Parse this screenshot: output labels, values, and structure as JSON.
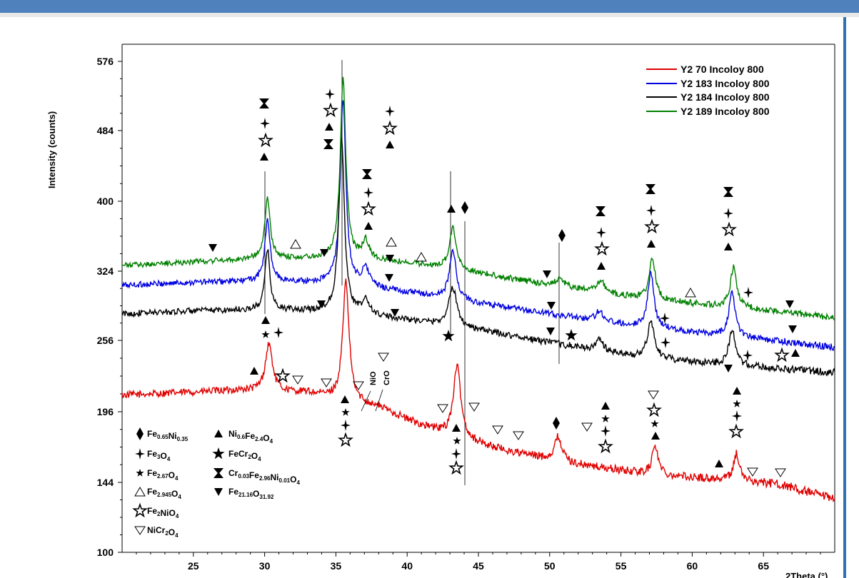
{
  "colors": {
    "header_bar": "#4f81bd",
    "side_bar": "#2e74b5"
  },
  "chart_data": {
    "type": "line",
    "title": "",
    "xlabel": "2Theta (°)",
    "ylabel": "Intensity (counts)",
    "xlim": [
      20,
      70
    ],
    "ylim": [
      100,
      600
    ],
    "x_ticks": [
      25,
      30,
      35,
      40,
      45,
      50,
      55,
      60,
      65
    ],
    "y_ticks": [
      100,
      144,
      196,
      256,
      324,
      400,
      484,
      576
    ],
    "legend_position": "top-right",
    "series": [
      {
        "name": "Y2 70  Incoloy 800",
        "color": "#e00000",
        "baseline": [
          [
            20,
            210
          ],
          [
            28,
            214
          ],
          [
            33,
            212
          ],
          [
            38,
            200
          ],
          [
            40,
            190
          ],
          [
            43,
            178
          ],
          [
            47,
            167
          ],
          [
            52,
            157
          ],
          [
            57,
            150
          ],
          [
            62,
            146
          ],
          [
            66,
            143
          ],
          [
            70,
            133
          ]
        ],
        "peaks": [
          [
            30.3,
            40,
            0.3
          ],
          [
            35.7,
            108,
            0.25
          ],
          [
            43.5,
            58,
            0.3
          ],
          [
            50.6,
            18,
            0.3
          ],
          [
            57.4,
            22,
            0.25
          ],
          [
            63.1,
            20,
            0.25
          ]
        ]
      },
      {
        "name": "Y2 183 Incoloy 800",
        "color": "#0000e0",
        "baseline": [
          [
            20,
            310
          ],
          [
            25,
            313
          ],
          [
            30,
            314
          ],
          [
            35,
            312
          ],
          [
            40,
            303
          ],
          [
            45,
            292
          ],
          [
            50,
            282
          ],
          [
            55,
            272
          ],
          [
            60,
            264
          ],
          [
            65,
            257
          ],
          [
            70,
            250
          ]
        ],
        "peaks": [
          [
            30.2,
            65,
            0.22
          ],
          [
            35.5,
            215,
            0.22
          ],
          [
            37.1,
            18,
            0.3
          ],
          [
            43.2,
            50,
            0.28
          ],
          [
            53.5,
            10,
            0.3
          ],
          [
            57.1,
            55,
            0.25
          ],
          [
            62.8,
            45,
            0.25
          ]
        ]
      },
      {
        "name": "Y2 184 Incoloy 800",
        "color": "#000000",
        "baseline": [
          [
            20,
            282
          ],
          [
            25,
            285
          ],
          [
            30,
            286
          ],
          [
            35,
            284
          ],
          [
            40,
            276
          ],
          [
            45,
            266
          ],
          [
            50,
            254
          ],
          [
            55,
            244
          ],
          [
            60,
            238
          ],
          [
            65,
            233
          ],
          [
            70,
            229
          ]
        ],
        "peaks": [
          [
            30.2,
            62,
            0.2
          ],
          [
            35.4,
            193,
            0.22
          ],
          [
            37.1,
            14,
            0.3
          ],
          [
            43.2,
            38,
            0.35
          ],
          [
            53.5,
            10,
            0.3
          ],
          [
            57.1,
            35,
            0.25
          ],
          [
            62.8,
            32,
            0.25
          ]
        ]
      },
      {
        "name": "Y2 189 Incoloy 800",
        "color": "#008000",
        "baseline": [
          [
            20,
            330
          ],
          [
            25,
            334
          ],
          [
            30,
            338
          ],
          [
            35,
            338
          ],
          [
            40,
            333
          ],
          [
            45,
            322
          ],
          [
            50,
            310
          ],
          [
            55,
            300
          ],
          [
            60,
            292
          ],
          [
            65,
            286
          ],
          [
            70,
            278
          ]
        ],
        "peaks": [
          [
            30.2,
            65,
            0.22
          ],
          [
            35.5,
            215,
            0.22
          ],
          [
            37.1,
            20,
            0.3
          ],
          [
            43.2,
            45,
            0.28
          ],
          [
            50.7,
            8,
            0.4
          ],
          [
            53.6,
            12,
            0.3
          ],
          [
            57.2,
            42,
            0.25
          ],
          [
            62.9,
            40,
            0.25
          ]
        ]
      }
    ],
    "phase_legend": [
      {
        "symbol": "diamond-filled",
        "text": "Fe0.65Ni0.35",
        "formula": [
          [
            "Fe",
            ""
          ],
          [
            "0.65",
            "sub"
          ],
          [
            "Ni",
            ""
          ],
          [
            "0.35",
            "sub"
          ]
        ]
      },
      {
        "symbol": "triangle-filled",
        "text": "Ni0.6Fe2.4O4",
        "formula": [
          [
            "Ni",
            ""
          ],
          [
            "0.6",
            "sub"
          ],
          [
            "Fe",
            ""
          ],
          [
            "2.4",
            "sub"
          ],
          [
            "O",
            ""
          ],
          [
            "4",
            "sub"
          ]
        ]
      },
      {
        "symbol": "star4",
        "text": "Fe3O4",
        "formula": [
          [
            "Fe",
            ""
          ],
          [
            "3",
            "sub"
          ],
          [
            "O",
            ""
          ],
          [
            "4",
            "sub"
          ]
        ]
      },
      {
        "symbol": "star5-large",
        "text": "FeCr2O4",
        "formula": [
          [
            "FeCr",
            ""
          ],
          [
            "2",
            "sub"
          ],
          [
            "O",
            ""
          ],
          [
            "4",
            "sub"
          ]
        ]
      },
      {
        "symbol": "star5-small",
        "text": "Fe2.67O4",
        "formula": [
          [
            "Fe",
            ""
          ],
          [
            "2.67",
            "sub"
          ],
          [
            "O",
            ""
          ],
          [
            "4",
            "sub"
          ]
        ]
      },
      {
        "symbol": "hourglass",
        "text": "Cr0.03Fe2.96Ni0.01O4",
        "formula": [
          [
            "Cr",
            ""
          ],
          [
            "0.03",
            "sub"
          ],
          [
            "Fe",
            ""
          ],
          [
            "2.96",
            "sub"
          ],
          [
            "Ni",
            ""
          ],
          [
            "0.01",
            "sub"
          ],
          [
            "O",
            ""
          ],
          [
            "4",
            "sub"
          ]
        ]
      },
      {
        "symbol": "triangle-open",
        "text": "Fe2.945O4",
        "formula": [
          [
            "Fe",
            ""
          ],
          [
            "2.945",
            "sub"
          ],
          [
            "O",
            ""
          ],
          [
            "4",
            "sub"
          ]
        ]
      },
      {
        "symbol": "triangle-down-filled",
        "text": "Fe21.16O31.92",
        "formula": [
          [
            "Fe",
            ""
          ],
          [
            "21.16",
            "sub"
          ],
          [
            "O",
            ""
          ],
          [
            "31.92",
            "sub"
          ]
        ]
      },
      {
        "symbol": "star5-open",
        "text": "Fe2NiO4",
        "formula": [
          [
            "Fe",
            ""
          ],
          [
            "2",
            "sub"
          ],
          [
            "NiO",
            ""
          ],
          [
            "4",
            "sub"
          ]
        ]
      },
      {
        "symbol": "triangle-down-open",
        "text": "NiCr2O4",
        "formula": [
          [
            "NiCr",
            ""
          ],
          [
            "2",
            "sub"
          ],
          [
            "O",
            ""
          ],
          [
            "4",
            "sub"
          ]
        ]
      }
    ],
    "annotations": [
      {
        "text": "NiO",
        "x": 37.3,
        "y": 224
      },
      {
        "text": "CrO",
        "x": 38.1,
        "y": 226
      }
    ]
  }
}
